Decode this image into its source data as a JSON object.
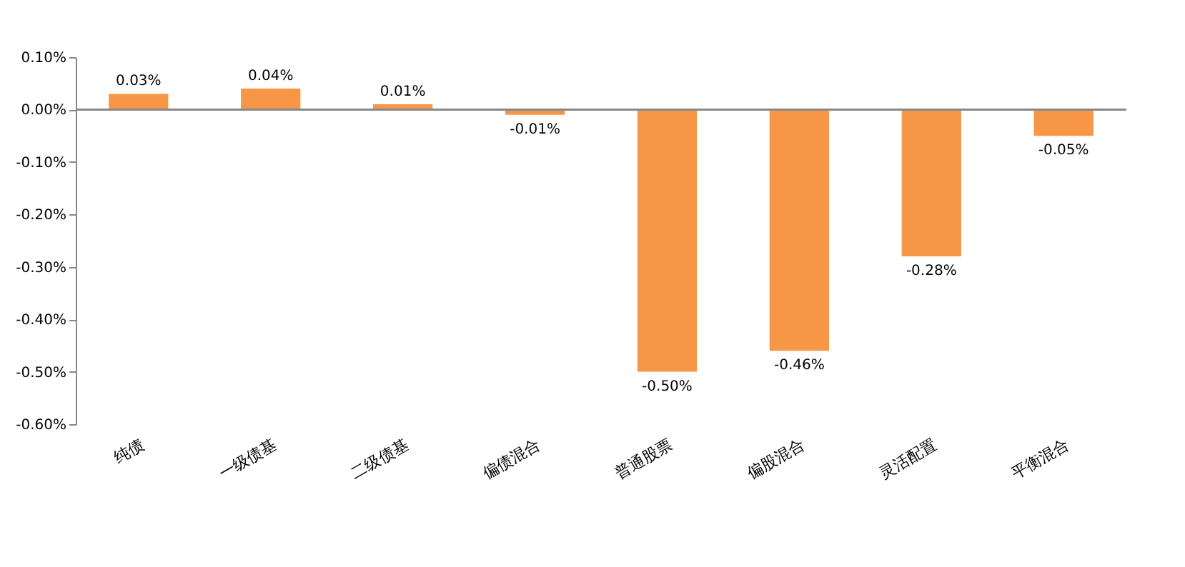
{
  "chart_data": {
    "type": "bar",
    "categories": [
      "纯债",
      "一级债基",
      "二级债基",
      "偏债混合",
      "普通股票",
      "偏股混合",
      "灵活配置",
      "平衡混合"
    ],
    "values": [
      0.03,
      0.04,
      0.01,
      -0.01,
      -0.5,
      -0.46,
      -0.28,
      -0.05
    ],
    "value_labels": [
      "0.03%",
      "0.04%",
      "0.01%",
      "-0.01%",
      "-0.50%",
      "-0.46%",
      "-0.28%",
      "-0.05%"
    ],
    "color": "#f79646",
    "ylim": [
      -0.6,
      0.1
    ],
    "yticks": [
      {
        "value": 0.1,
        "label": "0.10%"
      },
      {
        "value": 0.0,
        "label": "0.00%"
      },
      {
        "value": -0.1,
        "label": "-0.10%"
      },
      {
        "value": -0.2,
        "label": "-0.20%"
      },
      {
        "value": -0.3,
        "label": "-0.30%"
      },
      {
        "value": -0.4,
        "label": "-0.40%"
      },
      {
        "value": -0.5,
        "label": "-0.50%"
      },
      {
        "value": -0.6,
        "label": "-0.60%"
      }
    ],
    "line_style": "solid"
  }
}
